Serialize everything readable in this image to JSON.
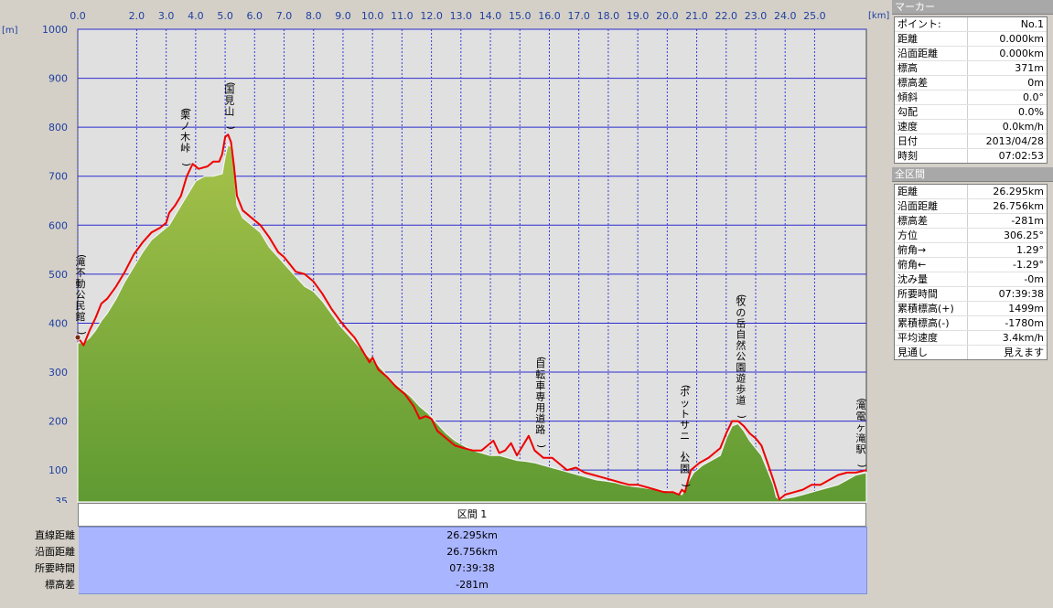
{
  "chart_data": {
    "type": "area",
    "xlabel_unit": "[km]",
    "ylabel_unit": "[m]",
    "xlim": [
      0,
      26.756
    ],
    "ylim": [
      35,
      1000
    ],
    "x_ticks": [
      0.0,
      2.0,
      3.0,
      4.0,
      5.0,
      6.0,
      7.0,
      8.0,
      9.0,
      10.0,
      11.0,
      12.0,
      13.0,
      14.0,
      15.0,
      16.0,
      17.0,
      18.0,
      19.0,
      20.0,
      21.0,
      22.0,
      23.0,
      24.0,
      25.0
    ],
    "x_tick_labels": [
      "0.0",
      "2.0",
      "3.0",
      "4.0",
      "5.0",
      "6.0",
      "7.0",
      "8.0",
      "9.0",
      "10.0",
      "11.0",
      "12.0",
      "13.0",
      "14.0",
      "15.0",
      "16.0",
      "17.0",
      "18.0",
      "19.0",
      "20.0",
      "21.0",
      "22.0",
      "23.0",
      "24.0",
      "25.0"
    ],
    "y_ticks": [
      100,
      200,
      300,
      400,
      500,
      600,
      700,
      800,
      900,
      1000
    ],
    "y_tick_labels": [
      "100",
      "200",
      "300",
      "400",
      "500",
      "600",
      "700",
      "800",
      "900",
      "1000"
    ],
    "y_min_label": "35",
    "grid": true,
    "series": [
      {
        "color": "#ee0000",
        "x": [
          0.0,
          0.2,
          0.4,
          0.6,
          0.8,
          1.0,
          1.3,
          1.6,
          1.9,
          2.2,
          2.5,
          2.8,
          3.0,
          3.1,
          3.3,
          3.5,
          3.7,
          3.9,
          4.1,
          4.4,
          4.6,
          4.8,
          4.9,
          5.0,
          5.1,
          5.2,
          5.3,
          5.4,
          5.6,
          5.9,
          6.2,
          6.5,
          6.8,
          7.0,
          7.2,
          7.4,
          7.7,
          8.0,
          8.3,
          8.6,
          8.9,
          9.1,
          9.4,
          9.7,
          9.9,
          10.0,
          10.2,
          10.5,
          10.8,
          11.1,
          11.4,
          11.6,
          11.8,
          12.0,
          12.2,
          12.5,
          12.8,
          13.1,
          13.4,
          13.7,
          13.9,
          14.1,
          14.3,
          14.5,
          14.7,
          14.9,
          15.1,
          15.3,
          15.5,
          15.8,
          16.1,
          16.3,
          16.6,
          16.9,
          17.2,
          17.5,
          17.8,
          18.1,
          18.4,
          18.7,
          19.0,
          19.3,
          19.6,
          19.9,
          20.2,
          20.4,
          20.5,
          20.6,
          20.8,
          21.1,
          21.4,
          21.6,
          21.8,
          22.0,
          22.2,
          22.4,
          22.6,
          22.8,
          23.0,
          23.2,
          23.4,
          23.6,
          23.8,
          23.9,
          24.0,
          24.3,
          24.6,
          24.9,
          25.2,
          25.5,
          25.8,
          26.1,
          26.4,
          26.756
        ],
        "y": [
          371,
          355,
          385,
          410,
          440,
          450,
          475,
          505,
          540,
          565,
          585,
          595,
          605,
          625,
          640,
          660,
          700,
          725,
          715,
          720,
          730,
          730,
          745,
          780,
          785,
          770,
          720,
          660,
          630,
          615,
          600,
          575,
          545,
          535,
          520,
          505,
          500,
          485,
          460,
          430,
          405,
          390,
          370,
          340,
          320,
          330,
          305,
          290,
          270,
          255,
          230,
          205,
          210,
          205,
          180,
          165,
          150,
          145,
          140,
          140,
          150,
          160,
          135,
          140,
          155,
          130,
          150,
          170,
          140,
          125,
          125,
          115,
          100,
          105,
          95,
          90,
          85,
          80,
          75,
          70,
          70,
          65,
          60,
          55,
          55,
          50,
          60,
          55,
          100,
          115,
          125,
          135,
          145,
          175,
          200,
          200,
          190,
          175,
          165,
          150,
          115,
          80,
          40,
          45,
          50,
          55,
          60,
          70,
          70,
          80,
          90,
          95,
          95,
          100
        ]
      },
      {
        "color": "#5f9a32",
        "x": [
          0.0,
          0.2,
          0.4,
          0.6,
          0.8,
          1.0,
          1.3,
          1.6,
          1.9,
          2.2,
          2.5,
          2.8,
          3.1,
          3.4,
          3.7,
          4.0,
          4.3,
          4.6,
          4.9,
          5.0,
          5.1,
          5.2,
          5.3,
          5.4,
          5.6,
          5.9,
          6.2,
          6.5,
          6.8,
          7.1,
          7.4,
          7.7,
          8.0,
          8.3,
          8.6,
          8.9,
          9.2,
          9.5,
          9.8,
          10.1,
          10.4,
          10.7,
          11.0,
          11.3,
          11.6,
          11.9,
          12.2,
          12.5,
          12.8,
          13.1,
          13.4,
          13.7,
          14.0,
          14.3,
          14.6,
          14.9,
          15.2,
          15.5,
          15.8,
          16.1,
          16.4,
          16.7,
          17.0,
          17.3,
          17.6,
          17.9,
          18.2,
          18.5,
          18.8,
          19.1,
          19.4,
          19.7,
          20.0,
          20.3,
          20.5,
          20.6,
          20.7,
          20.9,
          21.2,
          21.5,
          21.8,
          22.0,
          22.2,
          22.4,
          22.6,
          22.8,
          23.0,
          23.2,
          23.4,
          23.6,
          23.7,
          23.8,
          24.0,
          24.3,
          24.6,
          24.9,
          25.2,
          25.5,
          25.8,
          26.1,
          26.4,
          26.756
        ],
        "y": [
          360,
          360,
          370,
          385,
          405,
          420,
          450,
          485,
          515,
          545,
          570,
          585,
          600,
          630,
          660,
          690,
          700,
          700,
          705,
          740,
          765,
          760,
          720,
          640,
          615,
          600,
          585,
          555,
          535,
          515,
          495,
          475,
          465,
          445,
          420,
          395,
          375,
          355,
          335,
          320,
          300,
          280,
          265,
          250,
          230,
          215,
          195,
          175,
          160,
          150,
          140,
          135,
          130,
          130,
          125,
          120,
          118,
          115,
          110,
          105,
          100,
          95,
          90,
          85,
          80,
          78,
          75,
          70,
          67,
          65,
          62,
          60,
          58,
          55,
          50,
          62,
          75,
          95,
          110,
          120,
          130,
          165,
          190,
          195,
          180,
          160,
          145,
          130,
          100,
          70,
          45,
          40,
          42,
          45,
          50,
          55,
          60,
          65,
          70,
          80,
          90,
          95
        ]
      }
    ],
    "annotations": [
      {
        "x": 0.05,
        "y": 371,
        "label": "(滝不動公民館)"
      },
      {
        "x": 3.65,
        "y": 715,
        "label": "(栗ノ木峠)"
      },
      {
        "x": 5.15,
        "y": 790,
        "label": "(国見山)"
      },
      {
        "x": 15.7,
        "y": 140,
        "label": "(自転車専用道路)"
      },
      {
        "x": 20.6,
        "y": 60,
        "label": "(ポットサニー公園)"
      },
      {
        "x": 22.5,
        "y": 200,
        "label": "(牧の岳自然公園遊歩道)"
      },
      {
        "x": 26.75,
        "y": 100,
        "label": "(滝電ヶ滝駅)"
      }
    ]
  },
  "panel": {
    "marker_header": "マーカー",
    "marker_rows": [
      {
        "k": "ポイント:",
        "v": "No.1"
      },
      {
        "k": "距離",
        "v": "0.000km"
      },
      {
        "k": "沿面距離",
        "v": "0.000km"
      },
      {
        "k": "標高",
        "v": "371m"
      },
      {
        "k": "標高差",
        "v": "0m"
      },
      {
        "k": "傾斜",
        "v": "0.0°"
      },
      {
        "k": "勾配",
        "v": "0.0%"
      },
      {
        "k": "速度",
        "v": "0.0km/h"
      },
      {
        "k": "日付",
        "v": "2013/04/28"
      },
      {
        "k": "時刻",
        "v": "07:02:53"
      }
    ],
    "total_header": "全区間",
    "total_rows": [
      {
        "k": "距離",
        "v": "26.295km"
      },
      {
        "k": "沿面距離",
        "v": "26.756km"
      },
      {
        "k": "標高差",
        "v": "-281m"
      },
      {
        "k": "方位",
        "v": "306.25°"
      },
      {
        "k": "俯角→",
        "v": "1.29°"
      },
      {
        "k": "俯角←",
        "v": "-1.29°"
      },
      {
        "k": "沈み量",
        "v": "-0m"
      },
      {
        "k": "所要時間",
        "v": "07:39:38"
      },
      {
        "k": "累積標高(+)",
        "v": "1499m"
      },
      {
        "k": "累積標高(-)",
        "v": "-1780m"
      },
      {
        "k": "平均速度",
        "v": "3.4km/h"
      },
      {
        "k": "見通し",
        "v": "見えます"
      }
    ]
  },
  "segment_table": {
    "header": "区間 1",
    "rows": [
      {
        "label": "直線距離",
        "value": "26.295km"
      },
      {
        "label": "沿面距離",
        "value": "26.756km"
      },
      {
        "label": "所要時間",
        "value": "07:39:38"
      },
      {
        "label": "標高差",
        "value": "-281m"
      }
    ]
  }
}
